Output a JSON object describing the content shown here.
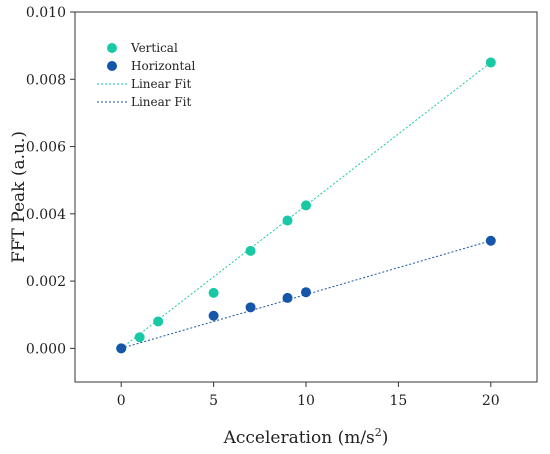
{
  "chart_data": {
    "type": "scatter",
    "xlabel": "Acceleration (m/s",
    "xlabel_superscript": "2",
    "xlabel_suffix": ")",
    "ylabel": "FFT Peak (a.u.)",
    "xlim": [
      -2.5,
      22.5
    ],
    "ylim": [
      -0.001,
      0.01
    ],
    "xticks": [
      0,
      5,
      10,
      15,
      20
    ],
    "xtick_labels": [
      "0",
      "5",
      "10",
      "15",
      "20"
    ],
    "yticks": [
      0.0,
      0.002,
      0.004,
      0.006,
      0.008,
      0.01
    ],
    "ytick_labels": [
      "0.000",
      "0.002",
      "0.004",
      "0.006",
      "0.008",
      "0.010"
    ],
    "grid": false,
    "legend_position": "top-left",
    "series": [
      {
        "name": "Vertical",
        "kind": "points",
        "color": "#19c9a6",
        "x": [
          0,
          1,
          2,
          5,
          7,
          9,
          10,
          20
        ],
        "y": [
          0.0,
          0.00033,
          0.0008,
          0.00165,
          0.0029,
          0.0038,
          0.00425,
          0.0085
        ]
      },
      {
        "name": "Horizontal",
        "kind": "points",
        "color": "#1556a8",
        "x": [
          0,
          5,
          7,
          9,
          10,
          20
        ],
        "y": [
          0.0,
          0.00097,
          0.00122,
          0.0015,
          0.00167,
          0.0032
        ]
      },
      {
        "name": "Linear Fit",
        "kind": "line",
        "color": "#19c9a6",
        "x": [
          0,
          20
        ],
        "y": [
          0.0,
          0.0085
        ]
      },
      {
        "name": "Linear Fit",
        "kind": "line",
        "color": "#1556a8",
        "x": [
          0,
          20
        ],
        "y": [
          0.0,
          0.0032
        ]
      }
    ]
  }
}
